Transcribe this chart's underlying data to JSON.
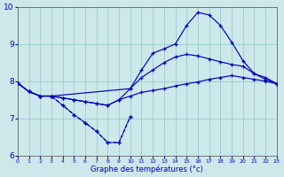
{
  "title": "Graphe des températures (°c)",
  "background_color": "#cce8ea",
  "grid_color": "#99cccc",
  "line_color": "#0000bb",
  "xlim": [
    0,
    23
  ],
  "ylim": [
    6,
    10
  ],
  "yticks": [
    6,
    7,
    8,
    9,
    10
  ],
  "xticks": [
    0,
    1,
    2,
    3,
    4,
    5,
    6,
    7,
    8,
    9,
    10,
    11,
    12,
    13,
    14,
    15,
    16,
    17,
    18,
    19,
    20,
    21,
    22,
    23
  ],
  "line1": {
    "x": [
      0,
      1,
      2,
      3,
      4,
      5,
      6,
      7,
      8,
      9,
      10,
      11,
      12,
      13,
      14,
      15,
      16,
      17,
      18,
      19,
      20,
      21,
      22,
      23
    ],
    "y": [
      7.95,
      7.72,
      7.6,
      7.6,
      7.55,
      7.5,
      7.45,
      7.4,
      7.35,
      7.5,
      7.6,
      7.7,
      7.75,
      7.8,
      7.87,
      7.93,
      7.98,
      8.05,
      8.1,
      8.15,
      8.1,
      8.05,
      8.0,
      7.93
    ],
    "style": "-",
    "marker": "+"
  },
  "line2": {
    "x": [
      0,
      1,
      2,
      3,
      4,
      5,
      6,
      7,
      8,
      9,
      10,
      11,
      12,
      13,
      14,
      15,
      16,
      17,
      18,
      19,
      20,
      21,
      22,
      23
    ],
    "y": [
      7.95,
      7.72,
      7.6,
      7.6,
      7.55,
      7.5,
      7.45,
      7.4,
      7.35,
      7.5,
      7.8,
      8.1,
      8.3,
      8.5,
      8.65,
      8.72,
      8.68,
      8.6,
      8.52,
      8.45,
      8.4,
      8.2,
      8.1,
      7.93
    ],
    "style": "-",
    "marker": "+"
  },
  "line3": {
    "x": [
      0,
      1,
      2,
      3,
      10,
      11,
      12,
      13,
      14,
      15,
      16,
      17,
      18,
      19,
      20,
      21,
      22,
      23
    ],
    "y": [
      7.95,
      7.72,
      7.6,
      7.6,
      7.8,
      8.3,
      8.75,
      8.87,
      9.0,
      9.5,
      9.85,
      9.78,
      9.5,
      9.05,
      8.55,
      8.2,
      8.05,
      7.93
    ],
    "style": "-",
    "marker": "+"
  },
  "line4": {
    "x": [
      3,
      4,
      5,
      6,
      7,
      8,
      9,
      10
    ],
    "y": [
      7.6,
      7.35,
      7.1,
      6.88,
      6.65,
      6.35,
      6.35,
      7.05
    ],
    "style": "--",
    "marker": "+"
  },
  "line5": {
    "x": [
      0,
      1,
      2,
      3,
      4,
      5,
      6,
      7,
      8,
      9,
      10
    ],
    "y": [
      7.95,
      7.72,
      7.6,
      7.6,
      7.35,
      7.1,
      6.88,
      6.65,
      6.35,
      6.35,
      7.05
    ],
    "style": "--",
    "marker": "+"
  }
}
